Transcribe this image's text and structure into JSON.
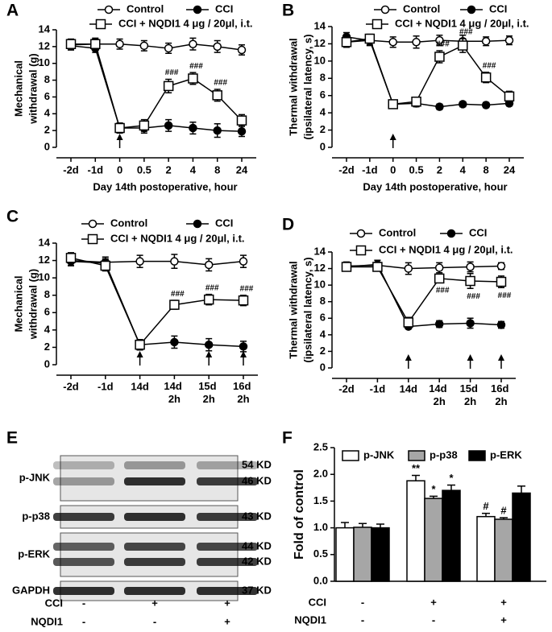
{
  "chart_data": [
    {
      "label": "A",
      "type": "line",
      "ylabel": [
        "Mechanical",
        "withdrawal (g)"
      ],
      "xlabel": "Day 14th postoperative, hour",
      "categories": [
        "-2d",
        "-1d",
        "0",
        "0.5",
        "2",
        "4",
        "8",
        "24"
      ],
      "ylim": [
        0,
        14
      ],
      "yticks": [
        0,
        2,
        4,
        6,
        8,
        10,
        12,
        14
      ],
      "series": [
        {
          "name": "Control",
          "color": "#000000",
          "marker": "circle-open",
          "values": [
            12.2,
            12.3,
            12.3,
            12.1,
            11.8,
            12.3,
            12.0,
            11.6
          ],
          "errors": [
            0.6,
            0.7,
            0.6,
            0.6,
            0.6,
            0.7,
            0.7,
            0.6
          ],
          "annotations": [
            null,
            null,
            null,
            null,
            null,
            null,
            null,
            null
          ]
        },
        {
          "name": "CCI",
          "color": "#000000",
          "marker": "circle-filled",
          "values": [
            12.1,
            11.8,
            2.3,
            2.3,
            2.6,
            2.3,
            2.0,
            1.9
          ],
          "errors": [
            0.5,
            0.5,
            0.6,
            0.6,
            0.7,
            0.7,
            0.8,
            0.6
          ],
          "annotations": [
            null,
            null,
            null,
            null,
            null,
            null,
            null,
            null
          ]
        },
        {
          "name": "CCI + NQDI1 4 μg / 20μl, i.t.",
          "color": "#000000",
          "marker": "square-open",
          "values": [
            12.3,
            12.3,
            2.3,
            2.6,
            7.3,
            8.2,
            6.2,
            3.2
          ],
          "errors": [
            0.6,
            0.6,
            0.6,
            0.7,
            0.8,
            0.7,
            0.7,
            0.7
          ],
          "annotations": [
            null,
            null,
            null,
            null,
            "###",
            "###",
            "###",
            null
          ]
        }
      ]
    },
    {
      "label": "B",
      "type": "line",
      "ylabel": [
        "Thermal withdrawal",
        "(ipsilateral latency, s)"
      ],
      "xlabel": "Day 14th postoperative, hour",
      "categories": [
        "-2d",
        "-1d",
        "0",
        "0.5",
        "2",
        "4",
        "8",
        "24"
      ],
      "ylim": [
        0,
        14
      ],
      "yticks": [
        0,
        2,
        4,
        6,
        8,
        10,
        12,
        14
      ],
      "series": [
        {
          "name": "Control",
          "color": "#000000",
          "marker": "circle-open",
          "values": [
            12.2,
            12.4,
            12.2,
            12.2,
            12.4,
            12.3,
            12.3,
            12.4
          ],
          "errors": [
            0.6,
            0.6,
            0.6,
            0.7,
            0.6,
            0.7,
            0.5,
            0.5
          ],
          "annotations": [
            null,
            null,
            null,
            null,
            null,
            null,
            null,
            null
          ]
        },
        {
          "name": "CCI",
          "color": "#000000",
          "marker": "circle-filled",
          "values": [
            12.8,
            12.4,
            5.0,
            5.1,
            4.7,
            5.0,
            4.9,
            5.1
          ],
          "errors": [
            0.5,
            0.5,
            0.4,
            0.4,
            0.3,
            0.3,
            0.3,
            0.3
          ],
          "annotations": [
            null,
            null,
            null,
            null,
            null,
            null,
            null,
            null
          ]
        },
        {
          "name": "CCI + NQDI1 4 μg / 20μl, i.t.",
          "color": "#000000",
          "marker": "square-open",
          "values": [
            12.2,
            12.6,
            5.0,
            5.3,
            10.5,
            11.8,
            8.1,
            5.9
          ],
          "errors": [
            0.5,
            0.5,
            0.4,
            0.4,
            0.7,
            0.8,
            0.6,
            0.6
          ],
          "annotations": [
            null,
            null,
            null,
            null,
            "###",
            "###",
            "###",
            null
          ]
        }
      ]
    },
    {
      "label": "C",
      "type": "line",
      "ylabel": [
        "Mechanical",
        "withdrawal (g)"
      ],
      "categories": [
        "-2d",
        "-1d",
        "14d",
        "14d 2h",
        "15d 2h",
        "16d 2h"
      ],
      "ylim": [
        0,
        14
      ],
      "yticks": [
        0,
        2,
        4,
        6,
        8,
        10,
        12,
        14
      ],
      "series": [
        {
          "name": "Control",
          "color": "#000000",
          "marker": "circle-open",
          "values": [
            12.0,
            11.8,
            11.9,
            11.9,
            11.5,
            11.9
          ],
          "errors": [
            0.6,
            0.6,
            0.7,
            0.8,
            0.7,
            0.7
          ],
          "annotations": [
            null,
            null,
            null,
            null,
            null,
            null
          ]
        },
        {
          "name": "CCI",
          "color": "#000000",
          "marker": "circle-filled",
          "values": [
            11.9,
            11.7,
            2.3,
            2.6,
            2.3,
            2.1
          ],
          "errors": [
            0.5,
            0.5,
            0.6,
            0.7,
            0.7,
            0.6
          ],
          "annotations": [
            null,
            null,
            null,
            null,
            null,
            null
          ]
        },
        {
          "name": "CCI + NQDI1 4 μg / 20μl, i.t.",
          "color": "#000000",
          "marker": "square-open",
          "values": [
            12.3,
            11.4,
            2.3,
            6.9,
            7.5,
            7.4
          ],
          "errors": [
            0.6,
            0.6,
            0.6,
            0.5,
            0.6,
            0.6
          ],
          "annotations": [
            null,
            null,
            null,
            "###",
            "###",
            "###"
          ]
        }
      ]
    },
    {
      "label": "D",
      "type": "line",
      "ylabel": [
        "Thermal withdrawal",
        "(ipsilateral latency, s)"
      ],
      "categories": [
        "-2d",
        "-1d",
        "14d",
        "14d 2h",
        "15d 2h",
        "16d 2h"
      ],
      "ylim": [
        0,
        14
      ],
      "yticks": [
        0,
        2,
        4,
        6,
        8,
        10,
        12,
        14
      ],
      "series": [
        {
          "name": "Control",
          "color": "#000000",
          "marker": "circle-open",
          "values": [
            12.3,
            12.4,
            12.0,
            12.1,
            12.2,
            12.3
          ],
          "errors": [
            0.5,
            0.6,
            0.7,
            0.6,
            0.6,
            0.4
          ],
          "annotations": [
            null,
            null,
            null,
            null,
            null,
            null
          ]
        },
        {
          "name": "CCI",
          "color": "#000000",
          "marker": "circle-filled",
          "values": [
            12.2,
            12.5,
            5.0,
            5.3,
            5.4,
            5.2
          ],
          "errors": [
            0.4,
            0.5,
            0.3,
            0.4,
            0.6,
            0.4
          ],
          "annotations": [
            null,
            null,
            null,
            null,
            null,
            null
          ]
        },
        {
          "name": "CCI + NQDI1 4 μg / 20μl, i.t.",
          "color": "#000000",
          "marker": "square-open",
          "values": [
            12.2,
            12.2,
            5.5,
            10.8,
            10.5,
            10.4
          ],
          "errors": [
            0.4,
            0.5,
            0.6,
            0.5,
            0.9,
            0.7
          ],
          "annotations": [
            null,
            null,
            null,
            "###",
            "###",
            "###"
          ]
        }
      ]
    },
    {
      "label": "F",
      "type": "bar",
      "ylabel": "Fold of control",
      "ylim": [
        0,
        2.5
      ],
      "yticks": [
        {
          "value": 0,
          "label": "0.0"
        },
        {
          "value": 0.5,
          "label": "0.5"
        },
        {
          "value": 1,
          "label": "1.0"
        },
        {
          "value": 1.5,
          "label": "1.5"
        },
        {
          "value": 2,
          "label": "2.0"
        },
        {
          "value": 2.5,
          "label": "2.5"
        }
      ],
      "conditions": [
        {
          "name": "CCI",
          "values": [
            "-",
            "+",
            "+"
          ]
        },
        {
          "name": "NQDI1",
          "values": [
            "-",
            "-",
            "+"
          ]
        }
      ],
      "series": [
        {
          "name": "p-JNK",
          "color": "#ffffff",
          "values": [
            1.0,
            1.88,
            1.21
          ],
          "errors": [
            0.1,
            0.1,
            0.06
          ],
          "annotations": [
            null,
            "**",
            "#"
          ]
        },
        {
          "name": "p-p38",
          "color": "#a6a6a6",
          "values": [
            1.01,
            1.55,
            1.16
          ],
          "errors": [
            0.07,
            0.04,
            0.03
          ],
          "annotations": [
            null,
            "*",
            "#"
          ]
        },
        {
          "name": "p-ERK",
          "color": "#000000",
          "values": [
            1.0,
            1.7,
            1.65
          ],
          "errors": [
            0.07,
            0.1,
            0.13
          ],
          "annotations": [
            null,
            "*",
            null
          ]
        }
      ]
    }
  ],
  "blot": {
    "label": "E",
    "rows": [
      {
        "name": "p-JNK",
        "weights": [
          "54 KD",
          "46 KD"
        ]
      },
      {
        "name": "p-p38",
        "weights": [
          "43 KD"
        ]
      },
      {
        "name": "p-ERK",
        "weights": [
          "44 KD",
          "42 KD"
        ]
      },
      {
        "name": "GAPDH",
        "weights": [
          "37 KD"
        ]
      }
    ],
    "conditions": [
      {
        "name": "CCI",
        "values": [
          "-",
          "+",
          "+"
        ]
      },
      {
        "name": "NQDI1",
        "values": [
          "-",
          "-",
          "+"
        ]
      }
    ]
  }
}
